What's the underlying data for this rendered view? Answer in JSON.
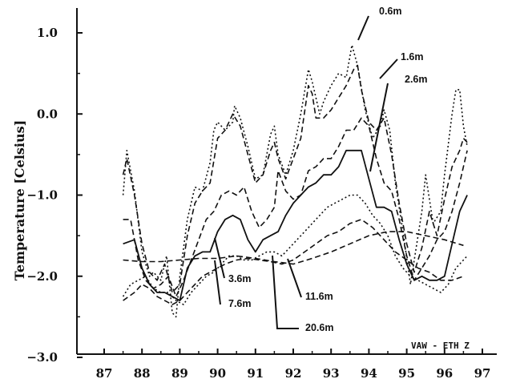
{
  "chart_data": {
    "type": "line",
    "title": "",
    "xlabel": "",
    "ylabel": "Temperature  [Celsius]",
    "credit": "VAW - ETH Z",
    "xlim": [
      86.5,
      97.4
    ],
    "ylim": [
      -3.0,
      1.0
    ],
    "xticks": [
      "87",
      "88",
      "89",
      "90",
      "91",
      "92",
      "93",
      "94",
      "95",
      "96",
      "97"
    ],
    "yticks": [
      "1.0",
      "0.0",
      "-1.0",
      "-2.0",
      "-3.0"
    ],
    "grid": false,
    "series": [
      {
        "name": "0.6m",
        "style": "dotted",
        "points": [
          [
            87.5,
            -1.0
          ],
          [
            87.6,
            -0.45
          ],
          [
            87.8,
            -0.95
          ],
          [
            88.0,
            -1.7
          ],
          [
            88.2,
            -2.0
          ],
          [
            88.3,
            -1.95
          ],
          [
            88.5,
            -2.05
          ],
          [
            88.65,
            -1.75
          ],
          [
            88.8,
            -2.45
          ],
          [
            88.9,
            -2.5
          ],
          [
            89.0,
            -2.0
          ],
          [
            89.2,
            -1.3
          ],
          [
            89.4,
            -0.9
          ],
          [
            89.6,
            -0.95
          ],
          [
            89.8,
            -0.6
          ],
          [
            89.9,
            -0.2
          ],
          [
            90.0,
            -0.1
          ],
          [
            90.2,
            -0.2
          ],
          [
            90.4,
            -0.1
          ],
          [
            90.45,
            0.1
          ],
          [
            90.6,
            -0.05
          ],
          [
            90.8,
            -0.4
          ],
          [
            91.0,
            -0.8
          ],
          [
            91.2,
            -0.75
          ],
          [
            91.4,
            -0.25
          ],
          [
            91.5,
            -0.15
          ],
          [
            91.6,
            -0.5
          ],
          [
            91.8,
            -0.75
          ],
          [
            92.0,
            -0.45
          ],
          [
            92.2,
            0.0
          ],
          [
            92.4,
            0.55
          ],
          [
            92.5,
            0.4
          ],
          [
            92.7,
            0.0
          ],
          [
            92.8,
            0.15
          ],
          [
            93.0,
            0.35
          ],
          [
            93.2,
            0.5
          ],
          [
            93.4,
            0.45
          ],
          [
            93.55,
            0.85
          ],
          [
            93.7,
            0.6
          ],
          [
            93.9,
            0.05
          ],
          [
            94.1,
            -0.3
          ],
          [
            94.3,
            -0.15
          ],
          [
            94.4,
            0.05
          ],
          [
            94.55,
            -0.2
          ],
          [
            94.7,
            -0.85
          ],
          [
            94.9,
            -1.45
          ],
          [
            95.1,
            -2.1
          ],
          [
            95.2,
            -1.8
          ],
          [
            95.4,
            -1.2
          ],
          [
            95.5,
            -0.75
          ],
          [
            95.7,
            -1.35
          ],
          [
            95.9,
            -1.2
          ],
          [
            96.0,
            -0.75
          ],
          [
            96.2,
            0.0
          ],
          [
            96.3,
            0.3
          ],
          [
            96.4,
            0.3
          ],
          [
            96.5,
            -0.15
          ],
          [
            96.6,
            -0.4
          ]
        ]
      },
      {
        "name": "1.6m",
        "style": "dashed",
        "points": [
          [
            87.5,
            -0.75
          ],
          [
            87.6,
            -0.55
          ],
          [
            87.8,
            -1.0
          ],
          [
            88.0,
            -1.6
          ],
          [
            88.2,
            -1.95
          ],
          [
            88.4,
            -2.05
          ],
          [
            88.6,
            -1.85
          ],
          [
            88.8,
            -2.2
          ],
          [
            89.0,
            -2.1
          ],
          [
            89.2,
            -1.5
          ],
          [
            89.4,
            -1.1
          ],
          [
            89.6,
            -0.95
          ],
          [
            89.8,
            -0.85
          ],
          [
            90.0,
            -0.3
          ],
          [
            90.2,
            -0.2
          ],
          [
            90.4,
            0.0
          ],
          [
            90.6,
            -0.15
          ],
          [
            90.8,
            -0.5
          ],
          [
            91.0,
            -0.85
          ],
          [
            91.2,
            -0.75
          ],
          [
            91.4,
            -0.45
          ],
          [
            91.5,
            -0.35
          ],
          [
            91.6,
            -0.55
          ],
          [
            91.8,
            -0.8
          ],
          [
            92.0,
            -0.55
          ],
          [
            92.2,
            -0.3
          ],
          [
            92.4,
            0.35
          ],
          [
            92.5,
            0.25
          ],
          [
            92.6,
            -0.05
          ],
          [
            92.8,
            -0.05
          ],
          [
            93.0,
            0.05
          ],
          [
            93.2,
            0.2
          ],
          [
            93.4,
            0.35
          ],
          [
            93.6,
            0.55
          ],
          [
            93.7,
            0.6
          ],
          [
            93.8,
            0.3
          ],
          [
            94.0,
            -0.1
          ],
          [
            94.2,
            -0.2
          ],
          [
            94.4,
            -0.05
          ],
          [
            94.6,
            -0.5
          ],
          [
            94.8,
            -1.1
          ],
          [
            95.0,
            -1.6
          ],
          [
            95.2,
            -1.95
          ],
          [
            95.4,
            -1.65
          ],
          [
            95.6,
            -1.2
          ],
          [
            95.8,
            -1.5
          ],
          [
            96.0,
            -1.05
          ],
          [
            96.2,
            -0.65
          ],
          [
            96.4,
            -0.45
          ],
          [
            96.5,
            -0.3
          ],
          [
            96.6,
            -0.35
          ]
        ]
      },
      {
        "name": "2.6m",
        "style": "dashed",
        "points": [
          [
            87.5,
            -1.3
          ],
          [
            87.7,
            -1.3
          ],
          [
            87.9,
            -1.8
          ],
          [
            88.1,
            -2.05
          ],
          [
            88.3,
            -2.15
          ],
          [
            88.5,
            -2.1
          ],
          [
            88.7,
            -2.0
          ],
          [
            88.9,
            -2.25
          ],
          [
            89.1,
            -2.05
          ],
          [
            89.3,
            -1.8
          ],
          [
            89.5,
            -1.55
          ],
          [
            89.7,
            -1.3
          ],
          [
            89.9,
            -1.2
          ],
          [
            90.1,
            -1.0
          ],
          [
            90.3,
            -0.95
          ],
          [
            90.5,
            -1.0
          ],
          [
            90.7,
            -0.9
          ],
          [
            90.9,
            -1.2
          ],
          [
            91.1,
            -1.4
          ],
          [
            91.3,
            -1.3
          ],
          [
            91.5,
            -1.15
          ],
          [
            91.6,
            -0.7
          ],
          [
            91.8,
            -0.95
          ],
          [
            92.0,
            -1.05
          ],
          [
            92.2,
            -1.0
          ],
          [
            92.4,
            -0.7
          ],
          [
            92.6,
            -0.65
          ],
          [
            92.8,
            -0.55
          ],
          [
            93.0,
            -0.55
          ],
          [
            93.2,
            -0.4
          ],
          [
            93.4,
            -0.2
          ],
          [
            93.6,
            -0.2
          ],
          [
            93.8,
            -0.05
          ],
          [
            94.0,
            -0.15
          ],
          [
            94.2,
            -0.55
          ],
          [
            94.4,
            -0.85
          ],
          [
            94.6,
            -0.95
          ],
          [
            94.8,
            -1.3
          ],
          [
            95.0,
            -1.75
          ],
          [
            95.2,
            -2.05
          ],
          [
            95.4,
            -1.9
          ],
          [
            95.6,
            -1.75
          ],
          [
            95.8,
            -1.55
          ],
          [
            96.0,
            -1.45
          ],
          [
            96.2,
            -1.2
          ],
          [
            96.4,
            -0.85
          ],
          [
            96.6,
            -0.45
          ]
        ]
      },
      {
        "name": "3.6m",
        "style": "solid",
        "points": [
          [
            87.5,
            -1.6
          ],
          [
            87.8,
            -1.55
          ],
          [
            88.0,
            -1.9
          ],
          [
            88.2,
            -2.1
          ],
          [
            88.4,
            -2.2
          ],
          [
            88.6,
            -2.2
          ],
          [
            88.8,
            -2.25
          ],
          [
            89.0,
            -2.3
          ],
          [
            89.2,
            -1.9
          ],
          [
            89.4,
            -1.75
          ],
          [
            89.6,
            -1.7
          ],
          [
            89.8,
            -1.7
          ],
          [
            90.0,
            -1.45
          ],
          [
            90.2,
            -1.3
          ],
          [
            90.4,
            -1.25
          ],
          [
            90.6,
            -1.3
          ],
          [
            90.8,
            -1.55
          ],
          [
            91.0,
            -1.7
          ],
          [
            91.2,
            -1.55
          ],
          [
            91.4,
            -1.5
          ],
          [
            91.6,
            -1.45
          ],
          [
            91.8,
            -1.25
          ],
          [
            92.0,
            -1.1
          ],
          [
            92.2,
            -1.0
          ],
          [
            92.4,
            -0.9
          ],
          [
            92.6,
            -0.85
          ],
          [
            92.8,
            -0.75
          ],
          [
            93.0,
            -0.75
          ],
          [
            93.2,
            -0.65
          ],
          [
            93.4,
            -0.45
          ],
          [
            93.6,
            -0.45
          ],
          [
            93.8,
            -0.45
          ],
          [
            94.0,
            -0.8
          ],
          [
            94.2,
            -1.15
          ],
          [
            94.4,
            -1.15
          ],
          [
            94.6,
            -1.2
          ],
          [
            94.8,
            -1.55
          ],
          [
            95.0,
            -1.85
          ],
          [
            95.2,
            -2.05
          ],
          [
            95.4,
            -2.0
          ],
          [
            95.6,
            -2.05
          ],
          [
            95.8,
            -2.05
          ],
          [
            96.0,
            -2.0
          ],
          [
            96.2,
            -1.6
          ],
          [
            96.4,
            -1.2
          ],
          [
            96.6,
            -1.0
          ]
        ]
      },
      {
        "name": "7.6m",
        "style": "dotted",
        "points": [
          [
            87.5,
            -2.25
          ],
          [
            87.7,
            -2.1
          ],
          [
            87.9,
            -2.05
          ],
          [
            88.1,
            -2.0
          ],
          [
            88.3,
            -2.15
          ],
          [
            88.5,
            -2.2
          ],
          [
            88.7,
            -2.2
          ],
          [
            88.9,
            -2.3
          ],
          [
            89.1,
            -2.35
          ],
          [
            89.3,
            -2.2
          ],
          [
            89.5,
            -2.1
          ],
          [
            89.7,
            -2.0
          ],
          [
            89.9,
            -1.95
          ],
          [
            90.1,
            -1.85
          ],
          [
            90.3,
            -1.75
          ],
          [
            90.5,
            -1.75
          ],
          [
            90.7,
            -1.8
          ],
          [
            90.9,
            -1.8
          ],
          [
            91.1,
            -1.75
          ],
          [
            91.3,
            -1.7
          ],
          [
            91.5,
            -1.7
          ],
          [
            91.7,
            -1.75
          ],
          [
            91.9,
            -1.65
          ],
          [
            92.1,
            -1.55
          ],
          [
            92.3,
            -1.45
          ],
          [
            92.5,
            -1.35
          ],
          [
            92.7,
            -1.25
          ],
          [
            92.9,
            -1.15
          ],
          [
            93.1,
            -1.1
          ],
          [
            93.3,
            -1.05
          ],
          [
            93.5,
            -1.0
          ],
          [
            93.7,
            -1.0
          ],
          [
            93.9,
            -1.1
          ],
          [
            94.1,
            -1.25
          ],
          [
            94.3,
            -1.35
          ],
          [
            94.5,
            -1.5
          ],
          [
            94.7,
            -1.75
          ],
          [
            94.9,
            -1.9
          ],
          [
            95.1,
            -2.0
          ],
          [
            95.3,
            -2.05
          ],
          [
            95.5,
            -2.1
          ],
          [
            95.7,
            -2.15
          ],
          [
            95.9,
            -2.2
          ],
          [
            96.1,
            -2.1
          ],
          [
            96.3,
            -1.9
          ],
          [
            96.5,
            -1.8
          ],
          [
            96.6,
            -1.75
          ]
        ]
      },
      {
        "name": "11.6m",
        "style": "dashed",
        "points": [
          [
            87.5,
            -2.3
          ],
          [
            87.8,
            -2.2
          ],
          [
            88.0,
            -2.1
          ],
          [
            88.2,
            -2.15
          ],
          [
            88.4,
            -2.25
          ],
          [
            88.6,
            -2.3
          ],
          [
            88.8,
            -2.35
          ],
          [
            89.0,
            -2.3
          ],
          [
            89.2,
            -2.2
          ],
          [
            89.4,
            -2.1
          ],
          [
            89.6,
            -2.0
          ],
          [
            89.8,
            -1.95
          ],
          [
            90.0,
            -1.9
          ],
          [
            90.2,
            -1.85
          ],
          [
            90.5,
            -1.8
          ],
          [
            90.8,
            -1.78
          ],
          [
            91.1,
            -1.8
          ],
          [
            91.4,
            -1.82
          ],
          [
            91.7,
            -1.85
          ],
          [
            92.0,
            -1.8
          ],
          [
            92.3,
            -1.7
          ],
          [
            92.6,
            -1.6
          ],
          [
            92.9,
            -1.5
          ],
          [
            93.2,
            -1.45
          ],
          [
            93.5,
            -1.35
          ],
          [
            93.8,
            -1.3
          ],
          [
            94.1,
            -1.4
          ],
          [
            94.4,
            -1.55
          ],
          [
            94.7,
            -1.7
          ],
          [
            95.0,
            -1.8
          ],
          [
            95.3,
            -1.9
          ],
          [
            95.6,
            -1.95
          ],
          [
            95.9,
            -2.05
          ],
          [
            96.2,
            -2.05
          ],
          [
            96.5,
            -2.0
          ]
        ]
      },
      {
        "name": "20.6m",
        "style": "dashed",
        "points": [
          [
            87.5,
            -1.8
          ],
          [
            88.0,
            -1.82
          ],
          [
            88.5,
            -1.82
          ],
          [
            89.0,
            -1.8
          ],
          [
            89.5,
            -1.78
          ],
          [
            90.0,
            -1.78
          ],
          [
            90.5,
            -1.75
          ],
          [
            91.0,
            -1.78
          ],
          [
            91.5,
            -1.82
          ],
          [
            92.0,
            -1.85
          ],
          [
            92.5,
            -1.78
          ],
          [
            93.0,
            -1.7
          ],
          [
            93.5,
            -1.6
          ],
          [
            94.0,
            -1.5
          ],
          [
            94.5,
            -1.45
          ],
          [
            95.0,
            -1.45
          ],
          [
            95.5,
            -1.5
          ],
          [
            96.0,
            -1.55
          ],
          [
            96.5,
            -1.62
          ]
        ]
      }
    ]
  }
}
